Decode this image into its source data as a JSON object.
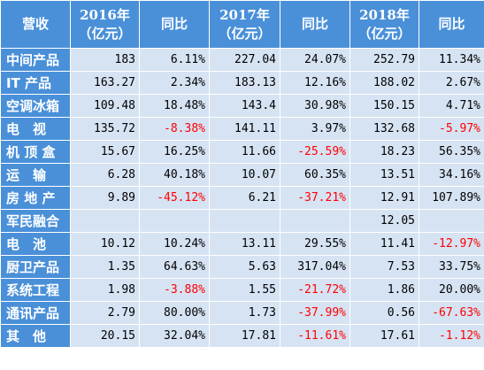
{
  "header": {
    "col0": "营收",
    "y2016": "2016年\n（亿元）",
    "yoy1": "同比",
    "y2017": "2017年\n（亿元）",
    "yoy2": "同比",
    "y2018": "2018年\n（亿元）",
    "yoy3": "同比"
  },
  "rows": [
    {
      "label": "中间产品",
      "v2016": "183",
      "g2016": "6.11%",
      "v2017": "227.04",
      "g2017": "24.07%",
      "v2018": "252.79",
      "g2018": "11.34%"
    },
    {
      "label": "IT 产品",
      "v2016": "163.27",
      "g2016": "2.34%",
      "v2017": "183.13",
      "g2017": "12.16%",
      "v2018": "188.02",
      "g2018": "2.67%"
    },
    {
      "label": "空调冰箱",
      "v2016": "109.48",
      "g2016": "18.48%",
      "v2017": "143.4",
      "g2017": "30.98%",
      "v2018": "150.15",
      "g2018": "4.71%"
    },
    {
      "label": "电　视",
      "v2016": "135.72",
      "g2016": "-8.38%",
      "v2017": "141.11",
      "g2017": "3.97%",
      "v2018": "132.68",
      "g2018": "-5.97%"
    },
    {
      "label": "机 顶 盒",
      "v2016": "15.67",
      "g2016": "16.25%",
      "v2017": "11.66",
      "g2017": "-25.59%",
      "v2018": "18.23",
      "g2018": "56.35%"
    },
    {
      "label": "运　输",
      "v2016": "6.28",
      "g2016": "40.18%",
      "v2017": "10.07",
      "g2017": "60.35%",
      "v2018": "13.51",
      "g2018": "34.16%"
    },
    {
      "label": "房 地 产",
      "v2016": "9.89",
      "g2016": "-45.12%",
      "v2017": "6.21",
      "g2017": "-37.21%",
      "v2018": "12.91",
      "g2018": "107.89%"
    },
    {
      "label": "军民融合",
      "v2016": "",
      "g2016": "",
      "v2017": "",
      "g2017": "",
      "v2018": "12.05",
      "g2018": ""
    },
    {
      "label": "电　池",
      "v2016": "10.12",
      "g2016": "10.24%",
      "v2017": "13.11",
      "g2017": "29.55%",
      "v2018": "11.41",
      "g2018": "-12.97%"
    },
    {
      "label": "厨卫产品",
      "v2016": "1.35",
      "g2016": "64.63%",
      "v2017": "5.63",
      "g2017": "317.04%",
      "v2018": "7.53",
      "g2018": "33.75%"
    },
    {
      "label": "系统工程",
      "v2016": "1.98",
      "g2016": "-3.88%",
      "v2017": "1.55",
      "g2017": "-21.72%",
      "v2018": "1.86",
      "g2018": "20.00%"
    },
    {
      "label": "通讯产品",
      "v2016": "2.79",
      "g2016": "80.00%",
      "v2017": "1.73",
      "g2017": "-37.99%",
      "v2018": "0.56",
      "g2018": "-67.63%"
    },
    {
      "label": "其　他",
      "v2016": "20.15",
      "g2016": "32.04%",
      "v2017": "17.81",
      "g2017": "-11.61%",
      "v2018": "17.61",
      "g2018": "-1.12%"
    }
  ],
  "colors": {
    "header_bg": "#4a90d9",
    "cell_bg": "#d6e3f3",
    "negative": "#ff0000"
  }
}
